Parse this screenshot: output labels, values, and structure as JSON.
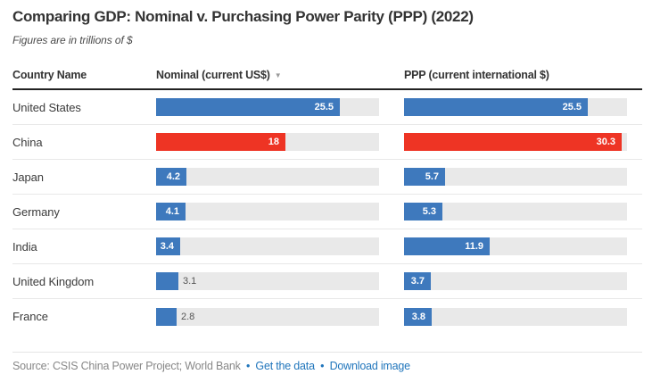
{
  "title": "Comparing GDP: Nominal v. Purchasing Power Parity (PPP) (2022)",
  "subtitle": "Figures are in trillions of $",
  "table": {
    "columns": [
      {
        "label": "Country Name",
        "sorted": false
      },
      {
        "label": "Nominal (current US$)",
        "sorted": true,
        "sort_icon": "▼",
        "sort_direction": "desc"
      },
      {
        "label": "PPP (current international $)",
        "sorted": false
      }
    ]
  },
  "chart_data": {
    "type": "bar",
    "title": "Comparing GDP: Nominal v. Purchasing Power Parity (PPP) (2022)",
    "subtitle": "Figures are in trillions of $",
    "unit": "trillions of $",
    "categories": [
      "United States",
      "China",
      "Japan",
      "Germany",
      "India",
      "United Kingdom",
      "France"
    ],
    "series": [
      {
        "name": "Nominal (current US$)",
        "values": [
          25.5,
          18,
          4.2,
          4.1,
          3.4,
          3.1,
          2.8
        ]
      },
      {
        "name": "PPP (current international $)",
        "values": [
          25.5,
          30.3,
          5.7,
          5.3,
          11.9,
          3.7,
          3.8
        ]
      }
    ],
    "highlight_category": "China",
    "axis_max": 31,
    "grid": false,
    "legend_position": "column-headers",
    "sort": {
      "column": "Nominal (current US$)",
      "direction": "desc"
    }
  },
  "footer": {
    "source_text": "Source: CSIS China Power Project; World Bank",
    "separator": "•",
    "links": [
      {
        "label": "Get the data"
      },
      {
        "label": "Download image"
      }
    ]
  },
  "colors": {
    "bar_default": "#3e79bd",
    "bar_highlight": "#ee3424",
    "bar_track": "#e9e9e9",
    "value_label_inside": "#ffffff",
    "value_label_outside": "#555555",
    "header_rule": "#222222",
    "row_divider": "#e8e8e8",
    "link": "#2176bc",
    "source_text_color": "#888888",
    "title_color": "#333333"
  }
}
